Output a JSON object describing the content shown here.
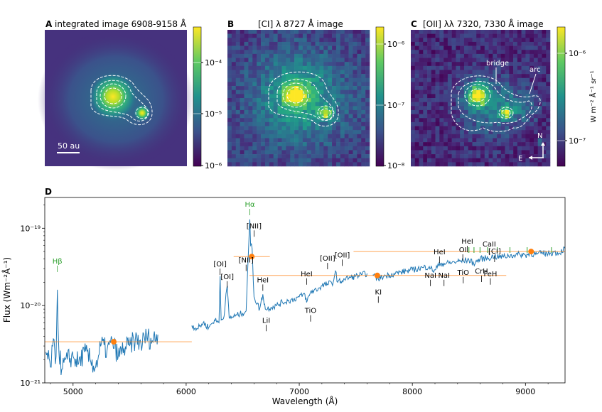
{
  "panels": {
    "A": {
      "letter": "A",
      "title": "integrated image 6908-9158 Å",
      "scalebar_label": "50 au",
      "colorbar_ticks": [
        "10⁻⁴",
        "10⁻⁵",
        "10⁻⁶"
      ]
    },
    "B": {
      "letter": "B",
      "title": "[CI] λ 8727 Å image",
      "colorbar_ticks": [
        "10⁻⁶",
        "10⁻⁷",
        "10⁻⁸"
      ]
    },
    "C": {
      "letter": "C",
      "title": "[OII] λλ 7320, 7330 Å image",
      "colorbar_ticks": [
        "10⁻⁶",
        "10⁻⁷"
      ],
      "colorbar_label": "W m⁻² Å⁻¹ sr⁻¹",
      "annotations": [
        "bridge",
        "arc"
      ],
      "compass": {
        "north": "N",
        "east": "E"
      }
    }
  },
  "colors": {
    "viridis_low": "#440154",
    "viridis_mid": "#21918c",
    "viridis_high": "#fde725",
    "spectrum": "#1f77b4",
    "photometry": "#ff7f0e",
    "hydrogen": "#2ca02c"
  },
  "chart_data": {
    "type": "line",
    "panel_letter": "D",
    "xlabel": "Wavelength (Å)",
    "ylabel": "Flux (Wm⁻²Å⁻¹)",
    "xlim": [
      4750,
      9350
    ],
    "ylim": [
      1e-21,
      2.5e-19
    ],
    "yscale": "log",
    "xticks": [
      5000,
      6000,
      7000,
      8000,
      9000
    ],
    "xtick_labels": [
      "5000",
      "6000",
      "7000",
      "8000",
      "9000"
    ],
    "ytick_labels": [
      "10⁻²¹",
      "10⁻²⁰",
      "10⁻¹⁹"
    ],
    "series": [
      {
        "name": "",
        "segments": [
          {
            "x": [
              4760,
              4800,
              4820,
              4850,
              4861,
              4875,
              4900,
              4950,
              5000,
              5050,
              5100,
              5150,
              5200,
              5250,
              5300,
              5350,
              5400,
              5450,
              5500,
              5550,
              5600,
              5650,
              5700,
              5750
            ],
            "y": [
              2.5e-21,
              1.6e-21,
              3e-21,
              2.2e-21,
              1.6e-20,
              2.5e-21,
              1.5e-21,
              2e-21,
              2.2e-21,
              1.8e-21,
              2.5e-21,
              2e-21,
              1.6e-21,
              3.2e-21,
              2.6e-21,
              3.4e-21,
              2.2e-21,
              2.8e-21,
              3e-21,
              3.6e-21,
              3.2e-21,
              4e-21,
              3.5e-21,
              4.2e-21
            ]
          },
          {
            "x": [
              6050,
              6100,
              6150,
              6200,
              6250,
              6290,
              6300,
              6310,
              6330,
              6363,
              6380,
              6420,
              6450,
              6500,
              6530,
              6548,
              6560,
              6563,
              6570,
              6583,
              6600,
              6650,
              6678,
              6700,
              6750,
              6800,
              6850,
              6900,
              6950,
              7000,
              7050,
              7065,
              7100,
              7150,
              7200,
              7250,
              7300,
              7320,
              7340,
              7380,
              7400,
              7450,
              7500,
              7550,
              7600
            ],
            "y": [
              5.5e-21,
              5e-21,
              6e-21,
              5.2e-21,
              6.5e-21,
              6e-21,
              2.4e-20,
              6.5e-21,
              6.8e-21,
              1.8e-20,
              7e-21,
              7.2e-21,
              7.5e-21,
              8e-21,
              8.5e-21,
              4e-20,
              1.1e-19,
              1.3e-19,
              6e-20,
              5.5e-20,
              1.3e-20,
              9e-21,
              1.4e-20,
              9e-21,
              9.5e-21,
              1e-20,
              1.1e-20,
              1.15e-20,
              1.2e-20,
              1.3e-20,
              1.4e-20,
              1.1e-20,
              1.5e-20,
              1.6e-20,
              1.8e-20,
              1.9e-20,
              2e-20,
              2.8e-20,
              2e-20,
              2.1e-20,
              2.2e-20,
              2.3e-20,
              2.4e-20,
              2.5e-20,
              2.6e-20
            ]
          },
          {
            "x": [
              7650,
              7700,
              7750,
              7800,
              7850,
              7900,
              7950,
              8000,
              8050,
              8100,
              8150,
              8183,
              8195,
              8250,
              8300,
              8350,
              8400,
              8450,
              8500,
              8542,
              8600,
              8650,
              8700,
              8727,
              8750,
              8800,
              8850,
              8900,
              8950,
              9000,
              9050,
              9100,
              9150,
              9200,
              9250,
              9300,
              9350
            ],
            "y": [
              2.5e-20,
              2.2e-20,
              2.4e-20,
              2.5e-20,
              2.6e-20,
              2.7e-20,
              2.8e-20,
              2.9e-20,
              3e-20,
              3.1e-20,
              3.2e-20,
              2.8e-20,
              2.9e-20,
              3.5e-20,
              3.5e-20,
              3.6e-20,
              3.7e-20,
              3.8e-20,
              3.9e-20,
              3.5e-20,
              4e-20,
              4.1e-20,
              4.2e-20,
              4.4e-20,
              4.2e-20,
              4.3e-20,
              4.4e-20,
              4.5e-20,
              4.6e-20,
              4.5e-20,
              4.7e-20,
              4.6e-20,
              4.8e-20,
              4.7e-20,
              4.9e-20,
              4.8e-20,
              5.5e-20
            ]
          }
        ]
      },
      {
        "name": "",
        "type": "photometry",
        "points": [
          {
            "x": 5360,
            "y": 3.4e-21,
            "xmin": 4750,
            "xmax": 6050
          },
          {
            "x": 6580,
            "y": 4.3e-20,
            "xmin": 6420,
            "xmax": 6740
          },
          {
            "x": 7690,
            "y": 2.45e-20,
            "xmin": 6560,
            "xmax": 8830
          },
          {
            "x": 9050,
            "y": 5e-20,
            "xmin": 7480,
            "xmax": 9350
          }
        ]
      }
    ],
    "annotations": [
      {
        "label": "Hβ",
        "x": 4861,
        "y": 3.5e-20,
        "color": "hydrogen"
      },
      {
        "label": "Hα",
        "x": 6563,
        "y": 1.9e-19,
        "color": "hydrogen"
      },
      {
        "label": "[OI]",
        "x": 6300,
        "y": 3.2e-20
      },
      {
        "label": "[OI]",
        "x": 6363,
        "y": 2.2e-20
      },
      {
        "label": "[NII]",
        "x": 6530,
        "y": 3.6e-20
      },
      {
        "label": "[NII]",
        "x": 6600,
        "y": 1e-19
      },
      {
        "label": "HeI",
        "x": 6678,
        "y": 2e-20
      },
      {
        "label": "LiI",
        "x": 6708,
        "y": 6e-21
      },
      {
        "label": "HeI",
        "x": 7065,
        "y": 2.4e-20
      },
      {
        "label": "TiO",
        "x": 7100,
        "y": 8e-21
      },
      {
        "label": "[OII]",
        "x": 7250,
        "y": 3.8e-20
      },
      {
        "label": "[OII]",
        "x": 7380,
        "y": 4.2e-20
      },
      {
        "label": "KI",
        "x": 7699,
        "y": 1.4e-20
      },
      {
        "label": "NaI",
        "x": 8160,
        "y": 2.3e-20
      },
      {
        "label": "NaI",
        "x": 8280,
        "y": 2.3e-20
      },
      {
        "label": "HeI",
        "x": 8240,
        "y": 4.6e-20
      },
      {
        "label": "OI",
        "x": 8446,
        "y": 4.9e-20
      },
      {
        "label": "HeI",
        "x": 8486,
        "y": 6.3e-20
      },
      {
        "label": "TiO",
        "x": 8450,
        "y": 2.5e-20
      },
      {
        "label": "CaII",
        "x": 8680,
        "y": 5.8e-20
      },
      {
        "label": "[CI]",
        "x": 8727,
        "y": 4.7e-20
      },
      {
        "label": "CrH",
        "x": 8611,
        "y": 2.6e-20
      },
      {
        "label": "FeH",
        "x": 8690,
        "y": 2.4e-20
      }
    ]
  }
}
